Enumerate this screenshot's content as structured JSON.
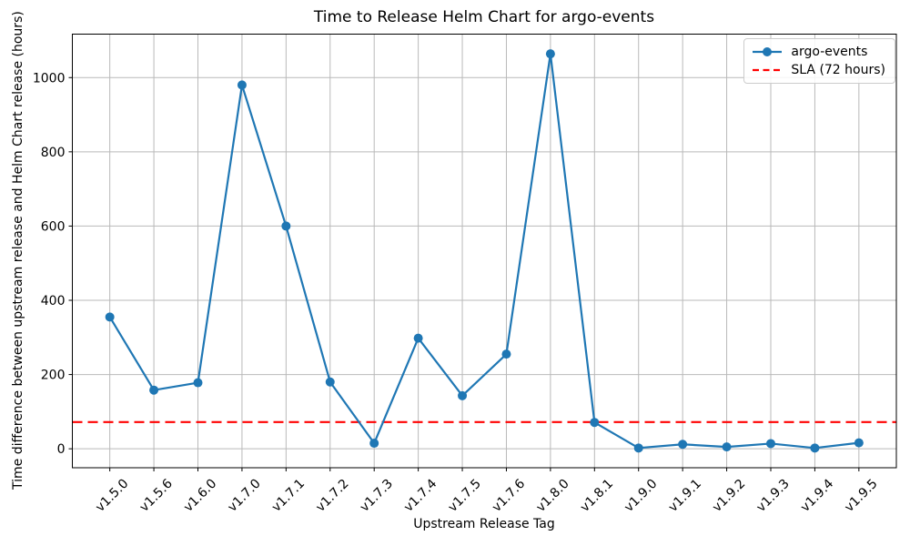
{
  "chart_data": {
    "type": "line",
    "title": "Time to Release Helm Chart for argo-events",
    "xlabel": "Upstream Release Tag",
    "ylabel": "Time difference between upstream release and Helm Chart release (hours)",
    "categories": [
      "v1.5.0",
      "v1.5.6",
      "v1.6.0",
      "v1.7.0",
      "v1.7.1",
      "v1.7.2",
      "v1.7.3",
      "v1.7.4",
      "v1.7.5",
      "v1.7.6",
      "v1.8.0",
      "v1.8.1",
      "v1.9.0",
      "v1.9.1",
      "v1.9.2",
      "v1.9.3",
      "v1.9.4",
      "v1.9.5"
    ],
    "series": [
      {
        "name": "argo-events",
        "color": "#1f77b4",
        "marker": "circle",
        "values": [
          355,
          158,
          178,
          980,
          600,
          180,
          15,
          298,
          143,
          255,
          1064,
          71,
          2,
          12,
          5,
          14,
          2,
          16
        ]
      }
    ],
    "sla_line": {
      "label": "SLA (72 hours)",
      "value": 72,
      "color": "#ff0000",
      "style": "dashed"
    },
    "yticks": [
      0,
      200,
      400,
      600,
      800,
      1000
    ],
    "ylim": [
      -51.1,
      1117.1
    ],
    "grid": true,
    "legend_position": "upper right",
    "x_tick_rotation": 45
  }
}
